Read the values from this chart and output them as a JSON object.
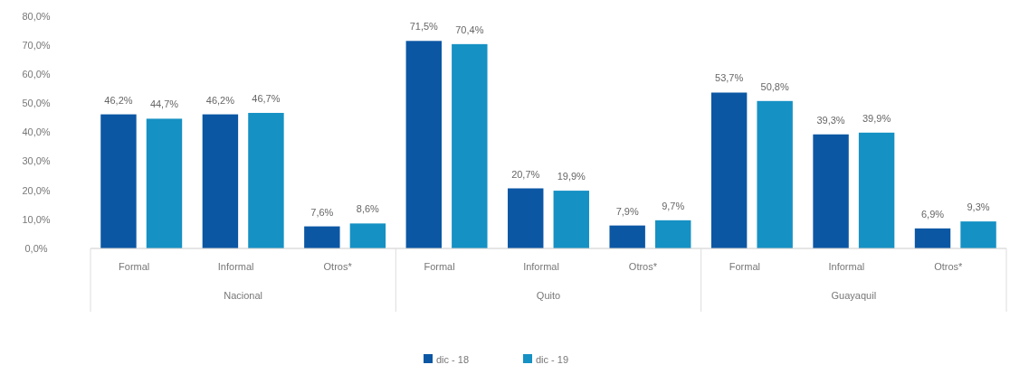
{
  "chart_data": {
    "type": "bar",
    "categories": [
      "Formal",
      "Informal",
      "Otros*",
      "Formal",
      "Informal",
      "Otros*",
      "Formal",
      "Informal",
      "Otros*"
    ],
    "annotations": [
      "Nacional",
      "Quito",
      "Guayaquil"
    ],
    "series": [
      {
        "name": "dic - 18",
        "color": "#0b57a4",
        "values": [
          46.2,
          46.2,
          7.6,
          71.5,
          20.7,
          7.9,
          53.7,
          39.3,
          6.9
        ],
        "value_labels": [
          "46,2%",
          "46,2%",
          "7,6%",
          "71,5%",
          "20,7%",
          "7,9%",
          "53,7%",
          "39,3%",
          "6,9%"
        ]
      },
      {
        "name": "dic - 19",
        "color": "#1591c4",
        "values": [
          44.7,
          46.7,
          8.6,
          70.4,
          19.9,
          9.7,
          50.8,
          39.9,
          9.3
        ],
        "value_labels": [
          "44,7%",
          "46,7%",
          "8,6%",
          "70,4%",
          "19,9%",
          "9,7%",
          "50,8%",
          "39,9%",
          "9,3%"
        ]
      }
    ],
    "ylim": [
      0,
      80
    ],
    "yticks": [
      {
        "value": 0,
        "label": "0,0%"
      },
      {
        "value": 10,
        "label": "10,0%"
      },
      {
        "value": 20,
        "label": "20,0%"
      },
      {
        "value": 30,
        "label": "30,0%"
      },
      {
        "value": 40,
        "label": "40,0%"
      },
      {
        "value": 50,
        "label": "50,0%"
      },
      {
        "value": 60,
        "label": "60,0%"
      },
      {
        "value": 70,
        "label": "70,0%"
      },
      {
        "value": 80,
        "label": "80,0%"
      }
    ],
    "grid": false,
    "legend": "bottom"
  }
}
